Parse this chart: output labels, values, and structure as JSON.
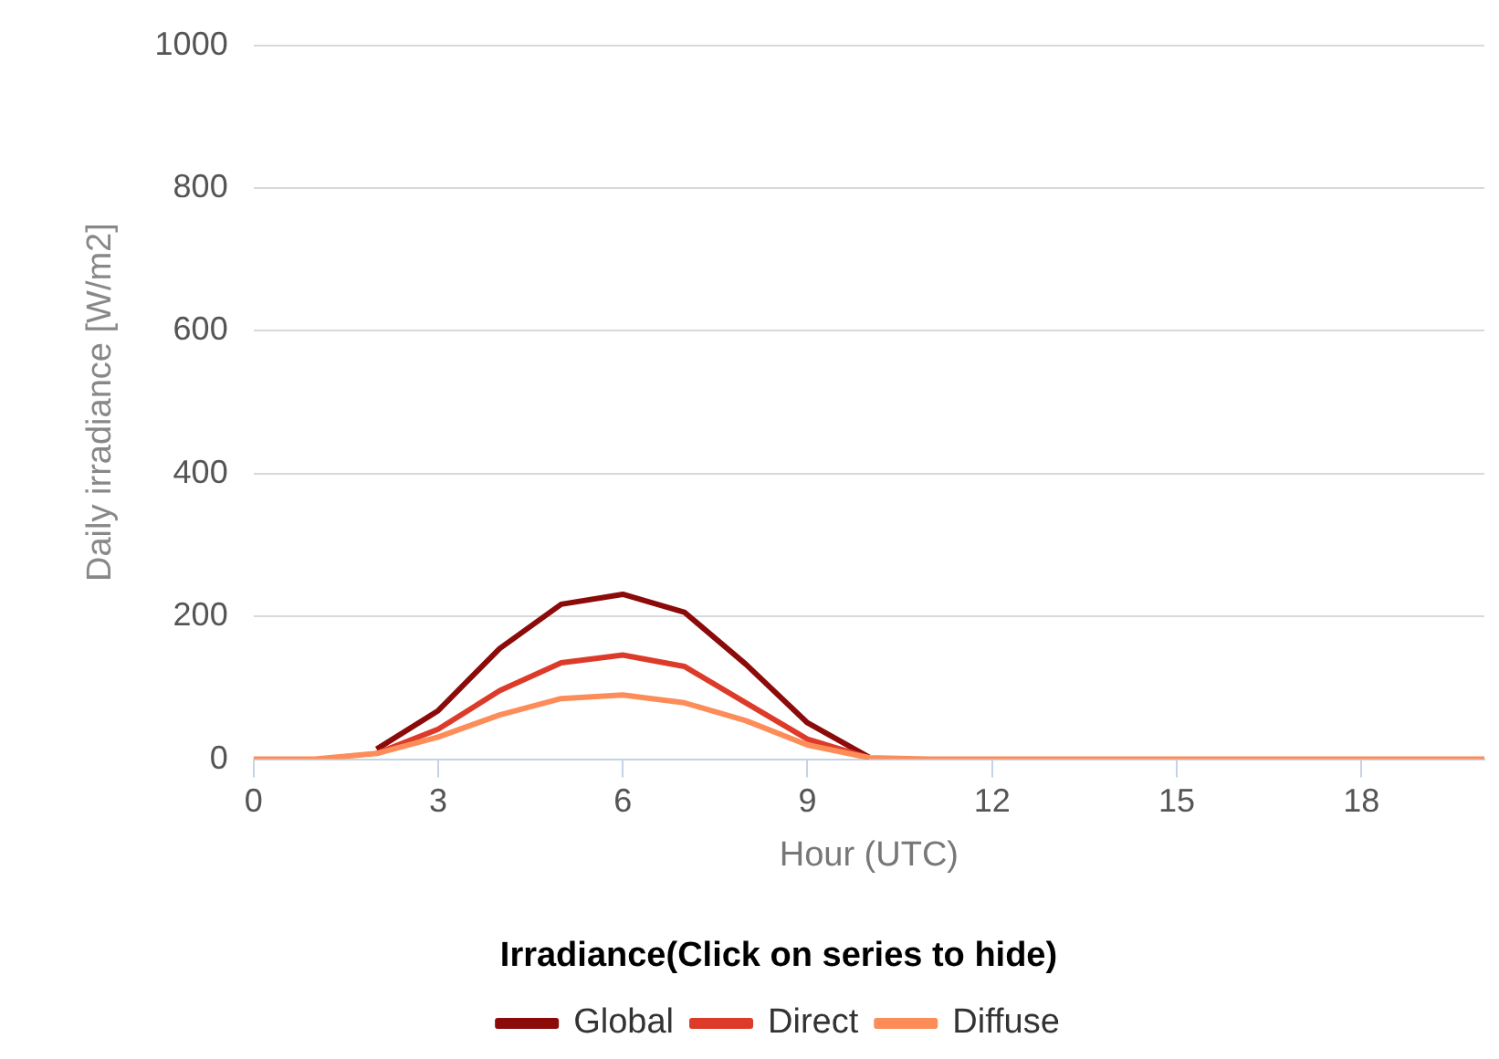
{
  "chart_data": {
    "type": "line",
    "xlabel": "Hour (UTC)",
    "ylabel": "Daily irradiance [W/m2]",
    "legend_title": "Irradiance(Click on series to hide)",
    "x": [
      0,
      1,
      2,
      3,
      4,
      5,
      6,
      7,
      8,
      9,
      10,
      11,
      12,
      13,
      14,
      15,
      16,
      17,
      18,
      19,
      20
    ],
    "series": [
      {
        "name": "Global",
        "color": "#8b0a0a",
        "values": [
          null,
          null,
          14,
          68,
          155,
          217,
          231,
          206,
          133,
          51,
          3,
          null,
          null,
          null,
          null,
          null,
          null,
          null,
          null,
          null,
          null
        ]
      },
      {
        "name": "Direct",
        "color": "#dd3b2a",
        "values": [
          null,
          null,
          8,
          42,
          96,
          135,
          146,
          130,
          79,
          28,
          2,
          null,
          null,
          null,
          null,
          null,
          null,
          null,
          null,
          null,
          null
        ]
      },
      {
        "name": "Diffuse",
        "color": "#fc8d59",
        "values": [
          0,
          0,
          8,
          31,
          62,
          85,
          90,
          79,
          54,
          20,
          2,
          0,
          0,
          0,
          0,
          0,
          0,
          0,
          0,
          0,
          0
        ]
      }
    ],
    "xlim": [
      0,
      20
    ],
    "xticks": [
      0,
      3,
      6,
      9,
      12,
      15,
      18
    ],
    "ylim": [
      0,
      1000
    ],
    "yticks": [
      0,
      200,
      400,
      600,
      800,
      1000
    ],
    "grid": "y",
    "legend": "bottom",
    "marker": "none",
    "line_style": "solid"
  }
}
